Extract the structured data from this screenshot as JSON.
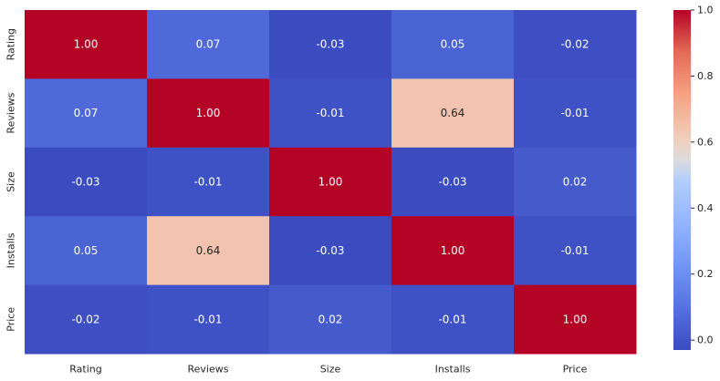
{
  "chart_data": {
    "type": "heatmap",
    "title": "",
    "xlabel": "",
    "ylabel": "",
    "x_categories": [
      "Rating",
      "Reviews",
      "Size",
      "Installs",
      "Price"
    ],
    "y_categories": [
      "Rating",
      "Reviews",
      "Size",
      "Installs",
      "Price"
    ],
    "values": [
      [
        1.0,
        0.07,
        -0.03,
        0.05,
        -0.02
      ],
      [
        0.07,
        1.0,
        -0.01,
        0.64,
        -0.01
      ],
      [
        -0.03,
        -0.01,
        1.0,
        -0.03,
        0.02
      ],
      [
        0.05,
        0.64,
        -0.03,
        1.0,
        -0.01
      ],
      [
        -0.02,
        -0.01,
        0.02,
        -0.01,
        1.0
      ]
    ],
    "colormap": "coolwarm",
    "value_range": [
      -0.03,
      1.0
    ],
    "annotation_format": "0.00",
    "colorbar": {
      "ticks": [
        0.0,
        0.2,
        0.4,
        0.6,
        0.8,
        1.0
      ],
      "tick_labels": [
        "0.0",
        "0.2",
        "0.4",
        "0.6",
        "0.8",
        "1.0"
      ]
    }
  }
}
